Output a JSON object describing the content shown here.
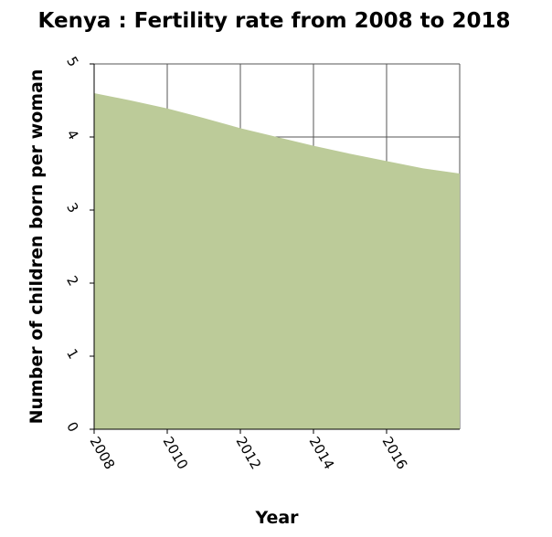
{
  "chart_data": {
    "type": "area",
    "title": "Kenya : Fertility rate from 2008 to 2018",
    "xlabel": "Year",
    "ylabel": "Number of children born per woman",
    "x": [
      2008,
      2009,
      2010,
      2011,
      2012,
      2013,
      2014,
      2015,
      2016,
      2017,
      2018
    ],
    "series": [
      {
        "values": [
          4.6,
          4.5,
          4.39,
          4.26,
          4.12,
          4.0,
          3.88,
          3.77,
          3.67,
          3.57,
          3.5
        ]
      }
    ],
    "xlim": [
      2008,
      2018
    ],
    "ylim": [
      0,
      5
    ],
    "xticks": [
      "2008",
      "2010",
      "2012",
      "2014",
      "2016"
    ],
    "yticks": [
      "0",
      "1",
      "2",
      "3",
      "4",
      "5"
    ],
    "grid": true,
    "fill_color": "#bccb99"
  }
}
